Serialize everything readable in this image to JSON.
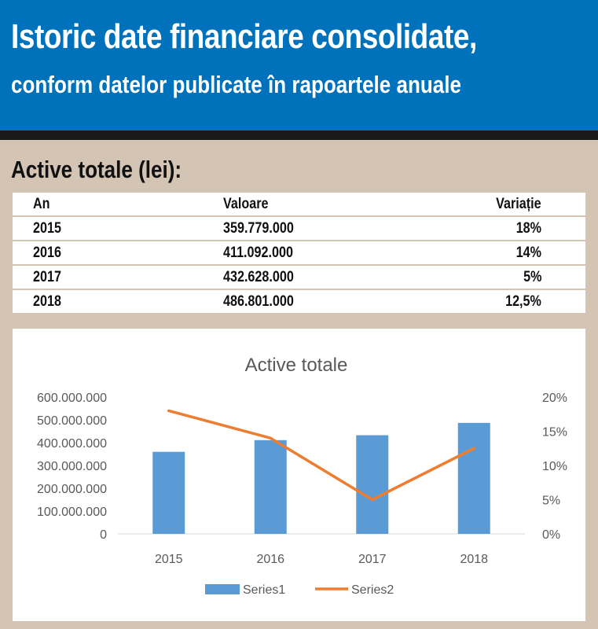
{
  "header": {
    "title": "Istoric date financiare consolidate,",
    "subtitle": "conform datelor publicate în rapoartele anuale"
  },
  "section": {
    "title": "Active totale (lei):"
  },
  "table": {
    "headers": [
      "An",
      "Valoare",
      "Variație"
    ],
    "rows": [
      [
        "2015",
        "359.779.000",
        "18%"
      ],
      [
        "2016",
        "411.092.000",
        "14%"
      ],
      [
        "2017",
        "432.628.000",
        "5%"
      ],
      [
        "2018",
        "486.801.000",
        "12,5%"
      ]
    ]
  },
  "colors": {
    "header_bg": "#0072bc",
    "page_bg": "#d4c4b4",
    "bar": "#5b9bd5",
    "line": "#ed7d31"
  },
  "chart_data": {
    "type": "bar",
    "title": "Active totale",
    "categories": [
      "2015",
      "2016",
      "2017",
      "2018"
    ],
    "series": [
      {
        "name": "Series1",
        "type": "bar",
        "axis": "left",
        "values": [
          359779000,
          411092000,
          432628000,
          486801000
        ]
      },
      {
        "name": "Series2",
        "type": "line",
        "axis": "right",
        "values": [
          18,
          14,
          5,
          12.5
        ]
      }
    ],
    "ylim_left": [
      0,
      600000000
    ],
    "yticks_left": [
      "0",
      "100.000.000",
      "200.000.000",
      "300.000.000",
      "400.000.000",
      "500.000.000",
      "600.000.000"
    ],
    "ylim_right": [
      0,
      20
    ],
    "yticks_right": [
      "0%",
      "5%",
      "10%",
      "15%",
      "20%"
    ],
    "legend": "bottom",
    "grid": false
  }
}
